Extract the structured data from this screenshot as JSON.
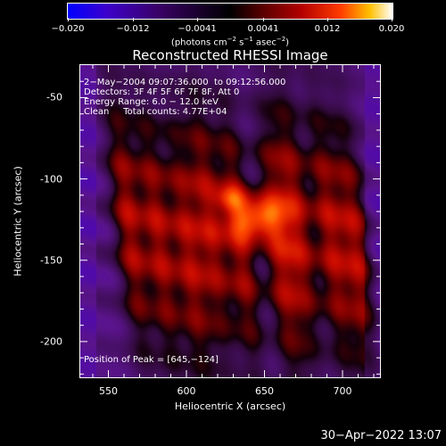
{
  "chart_data": {
    "type": "heatmap",
    "title": "Reconstructed RHESSI Image",
    "xlabel": "Heliocentric X (arcsec)",
    "ylabel": "Heliocentric Y (arcsec)",
    "xlim": [
      532,
      724
    ],
    "ylim": [
      -222,
      -30
    ],
    "x_ticks": [
      550,
      600,
      650,
      700
    ],
    "y_ticks": [
      -50,
      -100,
      -150,
      -200
    ],
    "colorbar": {
      "range": [
        -0.02,
        0.02
      ],
      "tick_labels": [
        "−0.020",
        "−0.012",
        "−0.0041",
        "0.0041",
        "0.012",
        "0.020"
      ],
      "tick_values": [
        -0.02,
        -0.012,
        -0.0041,
        0.0041,
        0.012,
        0.02
      ],
      "unit_text": [
        "(photons cm",
        "−2",
        " s",
        "−1",
        " asec",
        "−2",
        ")"
      ]
    },
    "annotations": {
      "time_range": "2−May−2004 09:07:36.000  to 09:12:56.000",
      "detectors": "Detectors: 3F 4F 5F 6F 7F 8F, Att 0",
      "energy": "Energy Range: 6.0 − 12.0 keV",
      "method": "Clean     Total counts: 4.77E+04",
      "peak": "Position of Peak = [645,−124]"
    },
    "peak": [
      645,
      -124
    ],
    "stripe_centers_x": [
      562,
      580,
      598,
      614,
      632,
      656,
      670,
      690,
      706
    ]
  },
  "timestamp": "30−Apr−2022 13:07"
}
